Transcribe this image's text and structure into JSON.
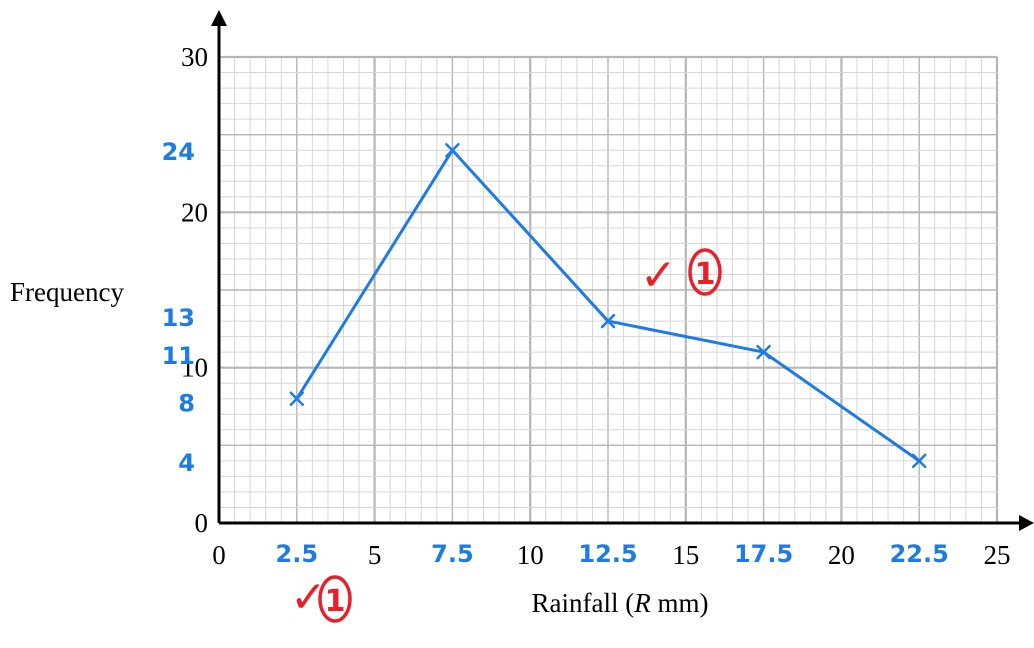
{
  "chart_data": {
    "type": "line",
    "xlabel_prefix": "Rainfall (",
    "xlabel_var": "R",
    "xlabel_suffix": " mm)",
    "ylabel": "Frequency",
    "xlim": [
      0,
      25
    ],
    "ylim": [
      0,
      30
    ],
    "x_ticks": [
      "0",
      "5",
      "10",
      "15",
      "20",
      "25"
    ],
    "y_ticks": [
      "0",
      "10",
      "20",
      "30"
    ],
    "grid": true,
    "series": [
      {
        "x": [
          2.5,
          7.5,
          12.5,
          17.5,
          22.5
        ],
        "y": [
          8,
          24,
          13,
          11,
          4
        ]
      }
    ],
    "annotations": {
      "x_handwritten": [
        "2.5",
        "7.5",
        "12.5",
        "17.5",
        "22.5"
      ],
      "y_handwritten": [
        "24",
        "13",
        "11",
        "8",
        "4"
      ],
      "marks": [
        "✓",
        "1",
        "✓",
        "1"
      ]
    },
    "colors": {
      "line": "#1e7be6",
      "annotation_blue": "#1e7be6",
      "mark_red": "#e8202a",
      "grid_major": "#b5b5b5",
      "grid_minor": "#d6d6d6",
      "axis": "#000000"
    }
  }
}
